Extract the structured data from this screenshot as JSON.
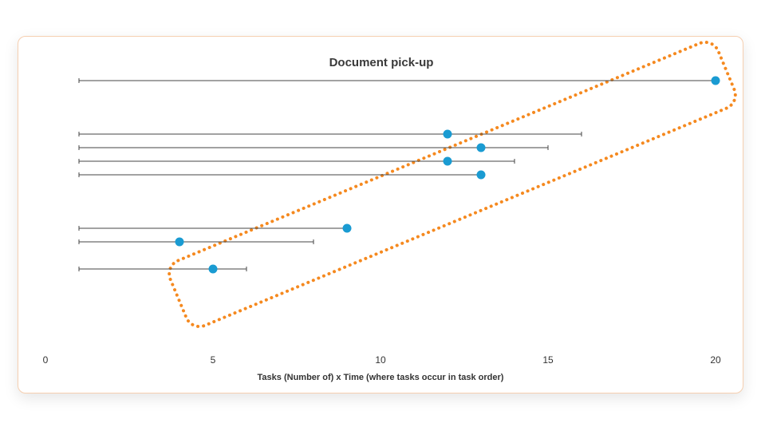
{
  "chart_data": {
    "type": "scatter",
    "title": "Document pick-up",
    "xlabel": "Tasks (Number of) x Time (where tasks occur in task order)",
    "ylabel": "",
    "xlim": [
      0,
      20
    ],
    "x_ticks": [
      0,
      5,
      10,
      15,
      20
    ],
    "grid": false,
    "rows": [
      {
        "range": [
          1,
          20
        ],
        "point": 20
      },
      {
        "range": [
          1,
          16
        ],
        "point": 12
      },
      {
        "range": [
          1,
          15
        ],
        "point": 13
      },
      {
        "range": [
          1,
          14
        ],
        "point": 12
      },
      {
        "range": [
          1,
          13
        ],
        "point": 13
      },
      {
        "range": [
          1,
          9
        ],
        "point": 9
      },
      {
        "range": [
          1,
          8
        ],
        "point": 4
      },
      {
        "range": [
          1,
          6
        ],
        "point": 5
      }
    ],
    "annotation": {
      "shape": "dotted rounded rectangle",
      "color": "#f5891f"
    },
    "colors": {
      "point": "#1a9bd2",
      "line": "#444444",
      "highlight": "#f5891f"
    }
  }
}
